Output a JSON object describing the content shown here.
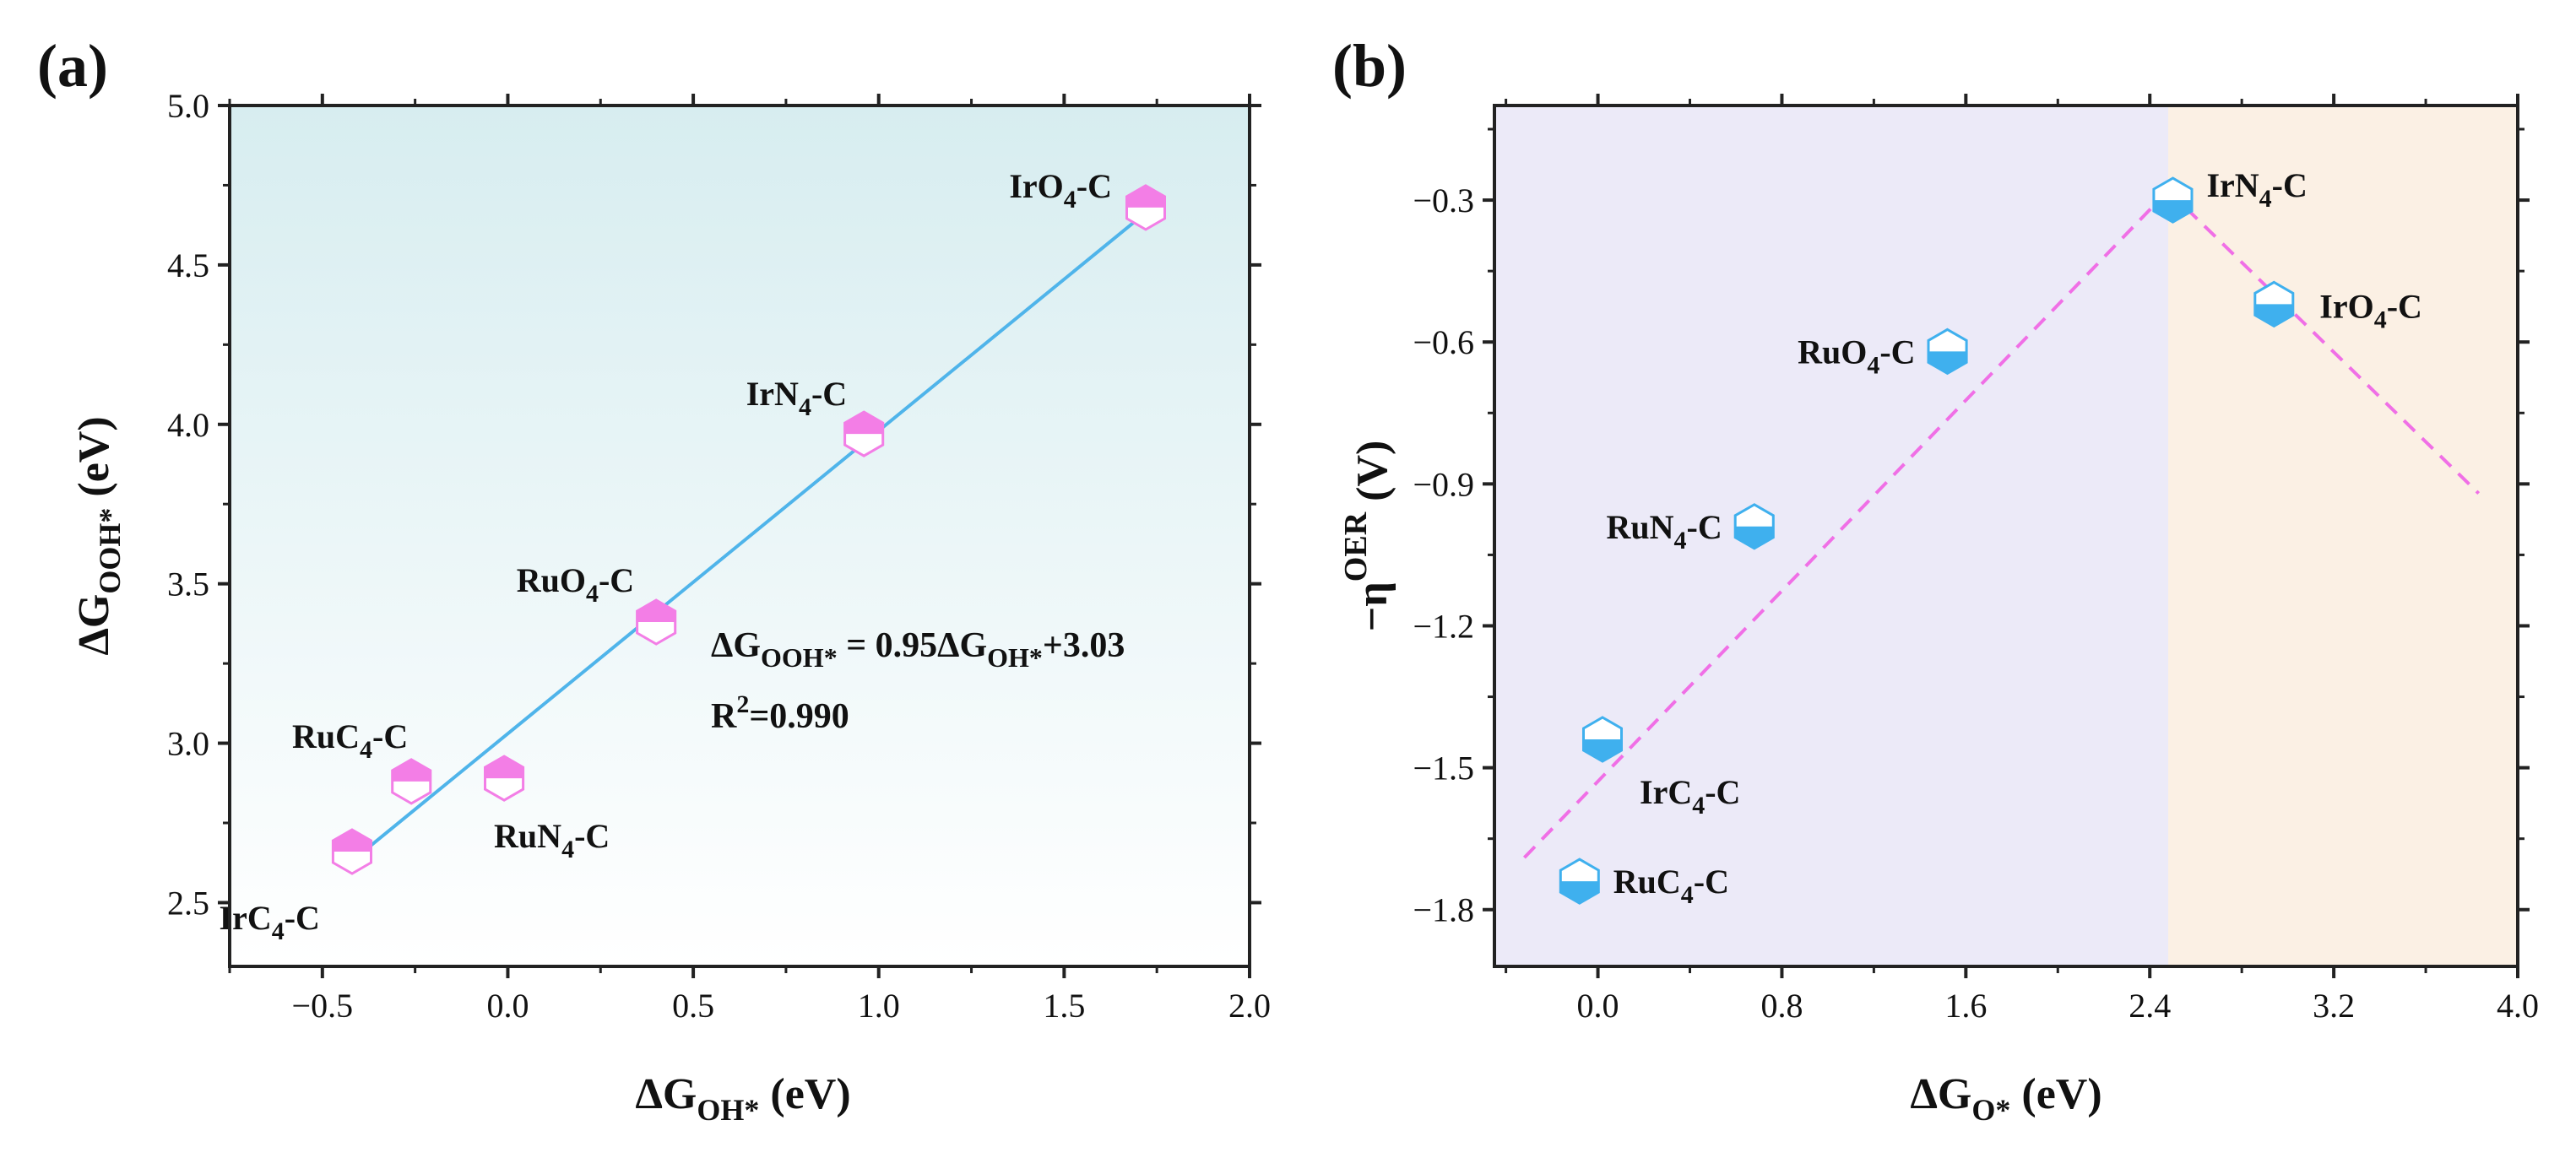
{
  "colors": {
    "marker_a": "#f37ee6",
    "marker_b": "#3fb0ee",
    "fit_line_a": "#4fb4ea",
    "fit_line_b": "#f06fe6",
    "bg_a_top": "#d7edf0",
    "bg_a_bottom": "#ffffff",
    "bg_b_left": "#eceaf8",
    "bg_b_right": "#fbf0e4"
  },
  "chart_data": [
    {
      "type": "scatter",
      "panel": "(a)",
      "xlabel": {
        "main": "ΔG",
        "sub": "OH*",
        "unit": " (eV)"
      },
      "ylabel": {
        "main": "ΔG",
        "sub": "OOH*",
        "unit": " (eV)"
      },
      "xlim": [
        -0.75,
        2.0
      ],
      "ylim": [
        2.3,
        5.0
      ],
      "xticks": [
        -0.5,
        0.0,
        0.5,
        1.0,
        1.5,
        2.0
      ],
      "xtick_labels": [
        "−0.5",
        "0.0",
        "0.5",
        "1.0",
        "1.5",
        "2.0"
      ],
      "yticks": [
        2.5,
        3.0,
        3.5,
        4.0,
        4.5,
        5.0
      ],
      "ytick_labels": [
        "2.5",
        "3.0",
        "3.5",
        "4.0",
        "4.5",
        "5.0"
      ],
      "points": [
        {
          "x": -0.42,
          "y": 2.66,
          "label": "IrC",
          "sub": "4",
          "suffix": "-C"
        },
        {
          "x": -0.26,
          "y": 2.88,
          "label": "RuC",
          "sub": "4",
          "suffix": "-C"
        },
        {
          "x": -0.01,
          "y": 2.89,
          "label": "RuN",
          "sub": "4",
          "suffix": "-C"
        },
        {
          "x": 0.4,
          "y": 3.38,
          "label": "RuO",
          "sub": "4",
          "suffix": "-C"
        },
        {
          "x": 0.96,
          "y": 3.97,
          "label": "IrN",
          "sub": "4",
          "suffix": "-C"
        },
        {
          "x": 1.72,
          "y": 4.68,
          "label": "IrO",
          "sub": "4",
          "suffix": "-C"
        }
      ],
      "fit": {
        "slope": 0.95,
        "intercept": 3.03,
        "x_range": [
          -0.42,
          1.72
        ]
      },
      "equation": {
        "lhs_main": "ΔG",
        "lhs_sub": "OOH*",
        "mid": " = 0.95ΔG",
        "mid_sub": "OH*",
        "rhs": "+3.03",
        "r2_main": "R",
        "r2_sup": "2",
        "r2_val": "=0.990"
      }
    },
    {
      "type": "scatter",
      "panel": "(b)",
      "xlabel": {
        "main": "ΔG",
        "sub": "O*",
        "unit": " (eV)"
      },
      "ylabel": {
        "main": "−η",
        "sup": "OER",
        "unit": " (V)"
      },
      "xlim": [
        -0.45,
        4.0
      ],
      "ylim": [
        -1.92,
        -0.1
      ],
      "xticks": [
        0.0,
        0.8,
        1.6,
        2.4,
        3.2,
        4.0
      ],
      "xtick_labels": [
        "0.0",
        "0.8",
        "1.6",
        "2.4",
        "3.2",
        "4.0"
      ],
      "yticks": [
        -1.8,
        -1.5,
        -1.2,
        -0.9,
        -0.6,
        -0.3
      ],
      "ytick_labels": [
        "−1.8",
        "−1.5",
        "−1.2",
        "−0.9",
        "−0.6",
        "−0.3"
      ],
      "region_split_x": 2.48,
      "points": [
        {
          "x": -0.08,
          "y": -1.74,
          "label": "RuC",
          "sub": "4",
          "suffix": "-C"
        },
        {
          "x": 0.02,
          "y": -1.44,
          "label": "IrC",
          "sub": "4",
          "suffix": "-C"
        },
        {
          "x": 0.68,
          "y": -0.99,
          "label": "RuN",
          "sub": "4",
          "suffix": "-C"
        },
        {
          "x": 1.52,
          "y": -0.62,
          "label": "RuO",
          "sub": "4",
          "suffix": "-C"
        },
        {
          "x": 2.5,
          "y": -0.3,
          "label": "IrN",
          "sub": "4",
          "suffix": "-C"
        },
        {
          "x": 2.94,
          "y": -0.52,
          "label": "IrO",
          "sub": "4",
          "suffix": "-C"
        }
      ],
      "volcano_lines": [
        {
          "from": [
            -0.32,
            -1.69
          ],
          "to": [
            2.48,
            -0.28
          ]
        },
        {
          "from": [
            2.48,
            -0.28
          ],
          "to": [
            3.83,
            -0.92
          ]
        }
      ]
    }
  ]
}
